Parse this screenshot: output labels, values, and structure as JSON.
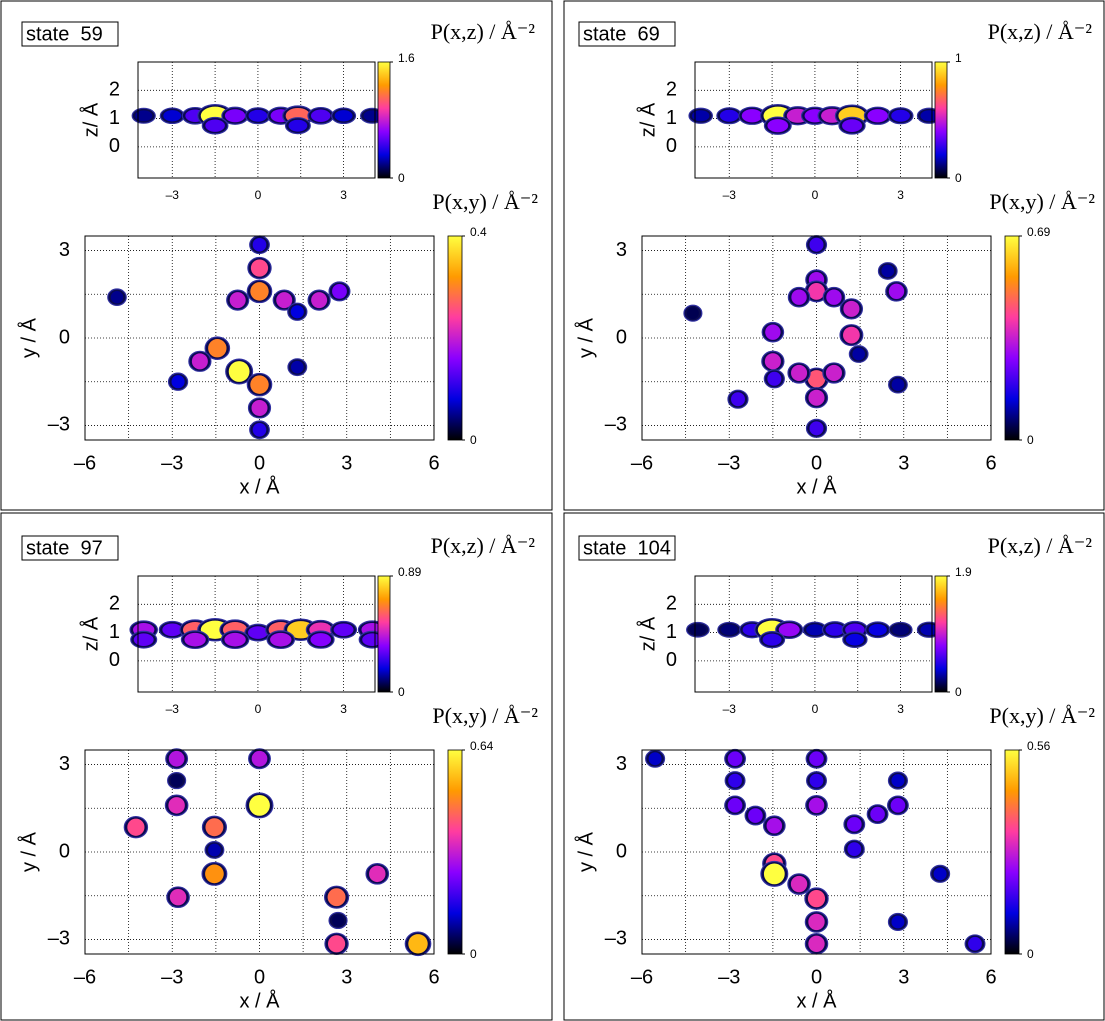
{
  "chart_data": [
    {
      "type": "heatmap",
      "panel_label": "state  59",
      "title": "P(x,z) / Å⁻²",
      "ylabel": "z/ Å",
      "xlim": [
        -4.2,
        4.1
      ],
      "ylim": [
        -1.1,
        3
      ],
      "xticks": [
        {
          "value": -3,
          "label": "–3"
        },
        0,
        3
      ],
      "yticks": [
        0,
        1,
        2
      ],
      "xminor": [
        -1.5,
        1.5
      ],
      "clim": [
        0,
        1.6
      ],
      "cticks": [
        0,
        1.6
      ],
      "colormap": [
        "#000000",
        "#0000e0",
        "#8a00ff",
        "#ff3ca0",
        "#ff9a00",
        "#ffff40"
      ],
      "x": [
        -4.0,
        -3.0,
        -2.2,
        -1.5,
        -0.8,
        0,
        0.8,
        1.4,
        2.2,
        3.0,
        4.0,
        -1.5,
        1.4
      ],
      "y": [
        1.1,
        1.1,
        1.1,
        1.1,
        1.1,
        1.1,
        1.1,
        1.1,
        1.1,
        1.1,
        1.1,
        0.75,
        0.75
      ],
      "values": [
        0.2,
        0.3,
        0.5,
        1.6,
        0.6,
        0.4,
        0.6,
        1.1,
        0.5,
        0.3,
        0.2,
        0.5,
        0.4
      ]
    },
    {
      "type": "heatmap",
      "title": "P(x,y) / Å⁻²",
      "xlabel": "x / Å",
      "ylabel": "y / Å",
      "xlim": [
        -6,
        6
      ],
      "ylim": [
        -3.5,
        3.5
      ],
      "xticks": [
        {
          "value": -6,
          "label": "–6"
        },
        {
          "value": -3,
          "label": "–3"
        },
        0,
        3,
        6
      ],
      "yticks": [
        {
          "value": -3,
          "label": "–3"
        },
        0,
        3
      ],
      "xminor": [
        -4.5,
        -1.5,
        1.5,
        4.5
      ],
      "yminor": [
        -1.5,
        1.5
      ],
      "clim": [
        0,
        0.4
      ],
      "cticks": [
        0,
        0.4
      ],
      "colormap": [
        "#000000",
        "#0000e0",
        "#8a00ff",
        "#ff3ca0",
        "#ff9a00",
        "#ffff40"
      ],
      "x": [
        0,
        0,
        0,
        -0.75,
        0.85,
        2.05,
        2.75,
        1.3,
        -1.45,
        -2.05,
        -0.7,
        0,
        0,
        0,
        -2.8,
        1.3,
        -4.9
      ],
      "y": [
        3.2,
        2.4,
        1.6,
        1.3,
        1.3,
        1.3,
        1.6,
        0.9,
        -0.35,
        -0.8,
        -1.15,
        -1.6,
        -2.4,
        -3.15,
        -1.5,
        -1.0,
        1.4
      ],
      "values": [
        0.1,
        0.25,
        0.3,
        0.2,
        0.2,
        0.2,
        0.15,
        0.08,
        0.3,
        0.2,
        0.4,
        0.3,
        0.2,
        0.1,
        0.08,
        0.06,
        0.05
      ]
    },
    {
      "type": "heatmap",
      "panel_label": "state  69",
      "title": "P(x,z) / Å⁻²",
      "ylabel": "z/ Å",
      "xlim": [
        -4.2,
        4.1
      ],
      "ylim": [
        -1.1,
        3
      ],
      "xticks": [
        {
          "value": -3,
          "label": "–3"
        },
        0,
        3
      ],
      "yticks": [
        0,
        1,
        2
      ],
      "xminor": [
        -1.5,
        1.5
      ],
      "clim": [
        0,
        1
      ],
      "cticks": [
        0,
        1
      ],
      "colormap": [
        "#000000",
        "#0000e0",
        "#8a00ff",
        "#ff3ca0",
        "#ff9a00",
        "#ffff40"
      ],
      "x": [
        -4.0,
        -3.0,
        -2.2,
        -1.3,
        -0.6,
        0,
        0.6,
        1.3,
        2.2,
        3.0,
        4.0,
        -1.3,
        1.3
      ],
      "y": [
        1.1,
        1.1,
        1.1,
        1.1,
        1.1,
        1.1,
        1.1,
        1.1,
        1.1,
        1.1,
        1.1,
        0.75,
        0.75
      ],
      "values": [
        0.15,
        0.25,
        0.4,
        1.0,
        0.5,
        0.4,
        0.5,
        0.9,
        0.4,
        0.25,
        0.15,
        0.4,
        0.35
      ]
    },
    {
      "type": "heatmap",
      "title": "P(x,y) / Å⁻²",
      "xlabel": "x / Å",
      "ylabel": "y / Å",
      "xlim": [
        -6,
        6
      ],
      "ylim": [
        -3.5,
        3.5
      ],
      "xticks": [
        {
          "value": -6,
          "label": "–6"
        },
        {
          "value": -3,
          "label": "–3"
        },
        0,
        3,
        6
      ],
      "yticks": [
        {
          "value": -3,
          "label": "–3"
        },
        0,
        3
      ],
      "xminor": [
        -4.5,
        -1.5,
        1.5,
        4.5
      ],
      "yminor": [
        -1.5,
        1.5
      ],
      "clim": [
        0,
        0.69
      ],
      "cticks": [
        0,
        0.69
      ],
      "colormap": [
        "#000000",
        "#0000e0",
        "#8a00ff",
        "#ff3ca0",
        "#ff9a00",
        "#ffff40"
      ],
      "x": [
        0,
        0,
        0,
        -0.6,
        0.6,
        1.2,
        1.2,
        2.75,
        2.45,
        -1.5,
        -1.5,
        0,
        -0.6,
        0.6,
        0,
        0,
        -2.7,
        2.8,
        -1.45,
        -4.25,
        1.45
      ],
      "y": [
        3.2,
        2.0,
        1.6,
        1.4,
        1.4,
        1.0,
        0.1,
        1.6,
        2.3,
        0.2,
        -0.8,
        -1.4,
        -1.2,
        -1.2,
        -2.05,
        -3.1,
        -2.1,
        -1.6,
        -1.4,
        0.85,
        -0.55
      ],
      "values": [
        0.2,
        0.3,
        0.4,
        0.3,
        0.3,
        0.35,
        0.4,
        0.3,
        0.1,
        0.3,
        0.35,
        0.45,
        0.35,
        0.35,
        0.35,
        0.2,
        0.2,
        0.1,
        0.2,
        0.05,
        0.1
      ]
    },
    {
      "type": "heatmap",
      "panel_label": "state  97",
      "title": "P(x,z) / Å⁻²",
      "ylabel": "z/ Å",
      "xlim": [
        -4.2,
        4.1
      ],
      "ylim": [
        -1.1,
        3
      ],
      "xticks": [
        {
          "value": -3,
          "label": "–3"
        },
        0,
        3
      ],
      "yticks": [
        0,
        1,
        2
      ],
      "xminor": [
        -1.5,
        1.5
      ],
      "clim": [
        0,
        0.89
      ],
      "cticks": [
        0,
        0.89
      ],
      "colormap": [
        "#000000",
        "#0000e0",
        "#8a00ff",
        "#ff3ca0",
        "#ff9a00",
        "#ffff40"
      ],
      "x": [
        -4.0,
        -3.0,
        -2.2,
        -1.5,
        -0.8,
        0,
        0.8,
        1.5,
        2.2,
        3.0,
        4.0,
        -4.0,
        -2.2,
        -0.8,
        0.8,
        2.2,
        4.0
      ],
      "y": [
        1.1,
        1.1,
        1.1,
        1.1,
        1.1,
        1.0,
        1.1,
        1.1,
        1.1,
        1.1,
        1.1,
        0.75,
        0.75,
        0.75,
        0.75,
        0.75,
        0.75
      ],
      "values": [
        0.4,
        0.3,
        0.6,
        0.89,
        0.6,
        0.3,
        0.6,
        0.8,
        0.5,
        0.3,
        0.4,
        0.3,
        0.4,
        0.4,
        0.4,
        0.35,
        0.3
      ]
    },
    {
      "type": "heatmap",
      "title": "P(x,y) / Å⁻²",
      "xlabel": "x / Å",
      "ylabel": "y / Å",
      "xlim": [
        -6,
        6
      ],
      "ylim": [
        -3.5,
        3.5
      ],
      "xticks": [
        {
          "value": -6,
          "label": "–6"
        },
        {
          "value": -3,
          "label": "–3"
        },
        0,
        3,
        6
      ],
      "yticks": [
        {
          "value": -3,
          "label": "–3"
        },
        0,
        3
      ],
      "xminor": [
        -4.5,
        -1.5,
        1.5,
        4.5
      ],
      "yminor": [
        -1.5,
        1.5
      ],
      "clim": [
        0,
        0.64
      ],
      "cticks": [
        0,
        0.64
      ],
      "colormap": [
        "#000000",
        "#0000e0",
        "#8a00ff",
        "#ff3ca0",
        "#ff9a00",
        "#ffff40"
      ],
      "x": [
        0,
        -2.85,
        -2.85,
        0,
        -4.25,
        -1.55,
        -1.55,
        -2.8,
        2.65,
        4.05,
        2.65,
        5.45,
        -2.85,
        -1.55,
        2.7
      ],
      "y": [
        3.2,
        3.2,
        1.6,
        1.6,
        0.85,
        0.85,
        -0.75,
        -1.55,
        -1.55,
        -0.75,
        -3.15,
        -3.15,
        2.45,
        0.07,
        -2.35
      ],
      "values": [
        0.3,
        0.3,
        0.35,
        0.64,
        0.4,
        0.45,
        0.5,
        0.35,
        0.45,
        0.35,
        0.4,
        0.55,
        0.05,
        0.1,
        0.05
      ]
    },
    {
      "type": "heatmap",
      "panel_label": "state  104",
      "title": "P(x,z) / Å⁻²",
      "ylabel": "z/ Å",
      "xlim": [
        -4.2,
        4.1
      ],
      "ylim": [
        -1.1,
        3
      ],
      "xticks": [
        {
          "value": -3,
          "label": "–3"
        },
        0,
        3
      ],
      "yticks": [
        0,
        1,
        2
      ],
      "xminor": [
        -1.5,
        1.5
      ],
      "clim": [
        0,
        1.9
      ],
      "cticks": [
        0,
        1.9
      ],
      "colormap": [
        "#000000",
        "#0000e0",
        "#8a00ff",
        "#ff3ca0",
        "#ff9a00",
        "#ffff40"
      ],
      "x": [
        -4.1,
        -3.0,
        -2.2,
        -1.5,
        -0.9,
        0,
        0.7,
        1.4,
        2.2,
        3.0,
        4.0,
        -1.5,
        1.4
      ],
      "y": [
        1.1,
        1.1,
        1.1,
        1.1,
        1.1,
        1.1,
        1.1,
        1.1,
        1.1,
        1.1,
        1.1,
        0.75,
        0.75
      ],
      "values": [
        0.15,
        0.2,
        0.5,
        1.9,
        0.8,
        0.3,
        0.5,
        0.6,
        0.4,
        0.2,
        0.3,
        0.5,
        0.4
      ]
    },
    {
      "type": "heatmap",
      "title": "P(x,y) / Å⁻²",
      "xlabel": "x / Å",
      "ylabel": "y / Å",
      "xlim": [
        -6,
        6
      ],
      "ylim": [
        -3.5,
        3.5
      ],
      "xticks": [
        {
          "value": -6,
          "label": "–6"
        },
        {
          "value": -3,
          "label": "–3"
        },
        0,
        3,
        6
      ],
      "yticks": [
        {
          "value": -3,
          "label": "–3"
        },
        0,
        3
      ],
      "xminor": [
        -4.5,
        -1.5,
        1.5,
        4.5
      ],
      "yminor": [
        -1.5,
        1.5
      ],
      "clim": [
        0,
        0.56
      ],
      "cticks": [
        0,
        0.56
      ],
      "colormap": [
        "#000000",
        "#0000e0",
        "#8a00ff",
        "#ff3ca0",
        "#ff9a00",
        "#ffff40"
      ],
      "x": [
        0,
        -2.8,
        -5.55,
        -2.8,
        0,
        0,
        -2.8,
        2.8,
        2.8,
        1.3,
        2.1,
        -1.45,
        -2.1,
        -1.45,
        -1.45,
        -0.6,
        0,
        0,
        0,
        2.8,
        4.25,
        5.45,
        1.3
      ],
      "y": [
        3.2,
        3.2,
        3.2,
        2.45,
        2.45,
        1.6,
        1.6,
        2.45,
        1.6,
        0.95,
        1.3,
        0.9,
        1.25,
        -0.4,
        -0.75,
        -1.1,
        -1.6,
        -2.4,
        -3.15,
        -2.4,
        -0.75,
        -3.15,
        0.1
      ],
      "values": [
        0.2,
        0.2,
        0.1,
        0.15,
        0.15,
        0.25,
        0.2,
        0.1,
        0.2,
        0.2,
        0.2,
        0.25,
        0.2,
        0.35,
        0.56,
        0.3,
        0.35,
        0.3,
        0.3,
        0.1,
        0.1,
        0.15,
        0.15
      ]
    }
  ]
}
